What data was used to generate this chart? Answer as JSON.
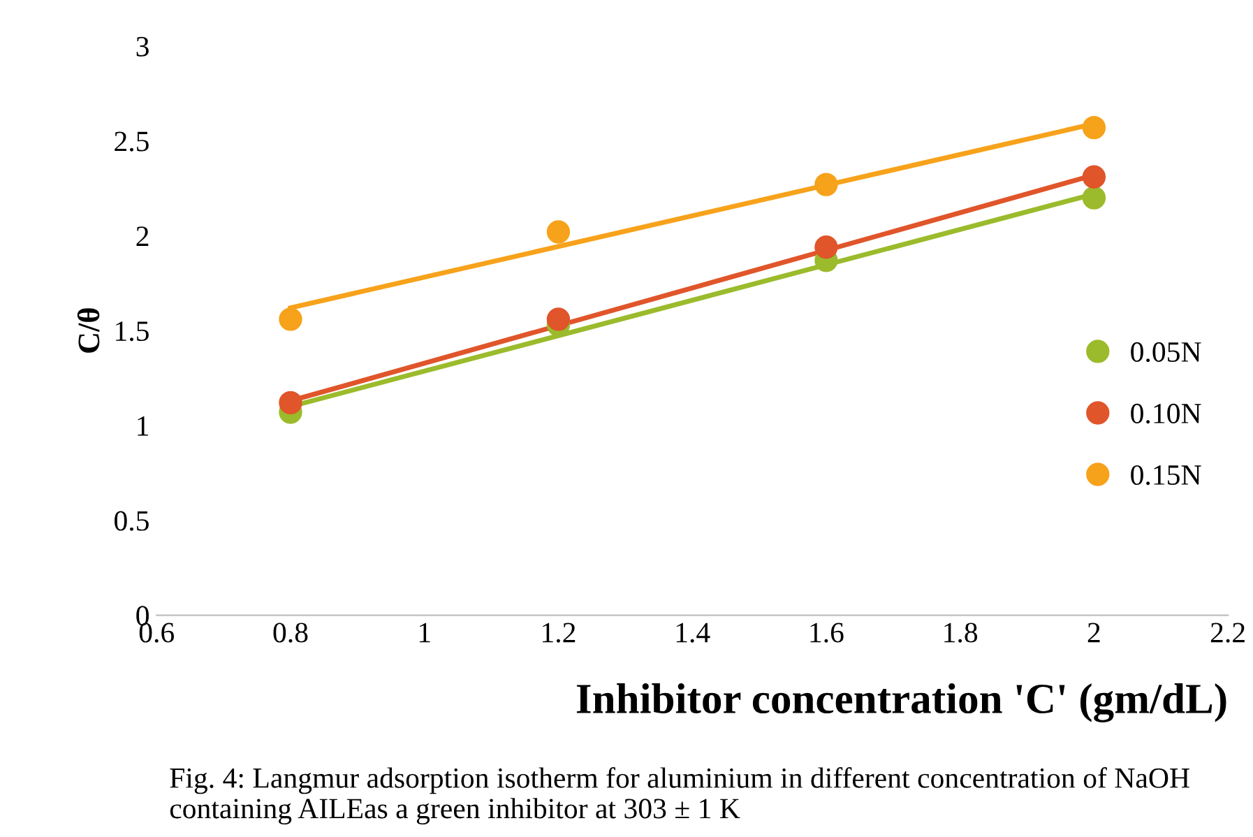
{
  "chart_data": {
    "type": "scatter",
    "xlabel": "Inhibitor concentration 'C' (gm/dL)",
    "ylabel": "C/θ",
    "xlim": [
      0.6,
      2.2
    ],
    "xticks": [
      0.6,
      0.8,
      1,
      1.2,
      1.4,
      1.6,
      1.8,
      2,
      2.2
    ],
    "ylim": [
      0,
      3
    ],
    "yticks": [
      0,
      0.5,
      1,
      1.5,
      2,
      2.5,
      3
    ],
    "grid": false,
    "legend": "right",
    "marker": "circle",
    "series": [
      {
        "name": "0.05N",
        "color": "#9bbb2c",
        "x": [
          0.8,
          1.2,
          1.6,
          2
        ],
        "values": [
          1.07,
          1.53,
          1.87,
          2.2
        ]
      },
      {
        "name": "0.10N",
        "color": "#e0552a",
        "x": [
          0.8,
          1.2,
          1.6,
          2
        ],
        "values": [
          1.12,
          1.56,
          1.94,
          2.31
        ]
      },
      {
        "name": "0.15N",
        "color": "#f7a21b",
        "x": [
          0.8,
          1.2,
          1.6,
          2
        ],
        "values": [
          1.56,
          2.02,
          2.27,
          2.57
        ]
      },
      {
        "type": "line",
        "marker": "none",
        "color": "#9bbb2c",
        "x": [
          0.8,
          2
        ],
        "values": [
          1.1,
          2.22
        ]
      },
      {
        "type": "line",
        "marker": "none",
        "color": "#e0552a",
        "x": [
          0.8,
          2
        ],
        "values": [
          1.13,
          2.32
        ]
      },
      {
        "type": "line",
        "marker": "none",
        "color": "#f7a21b",
        "x": [
          0.8,
          2
        ],
        "values": [
          1.62,
          2.59
        ]
      }
    ],
    "annotations": [
      "Fig. 4: Langmur adsorption isotherm for aluminium in different concentration of NaOH containing AILEas a green inhibitor at 303 ± 1 K"
    ]
  }
}
